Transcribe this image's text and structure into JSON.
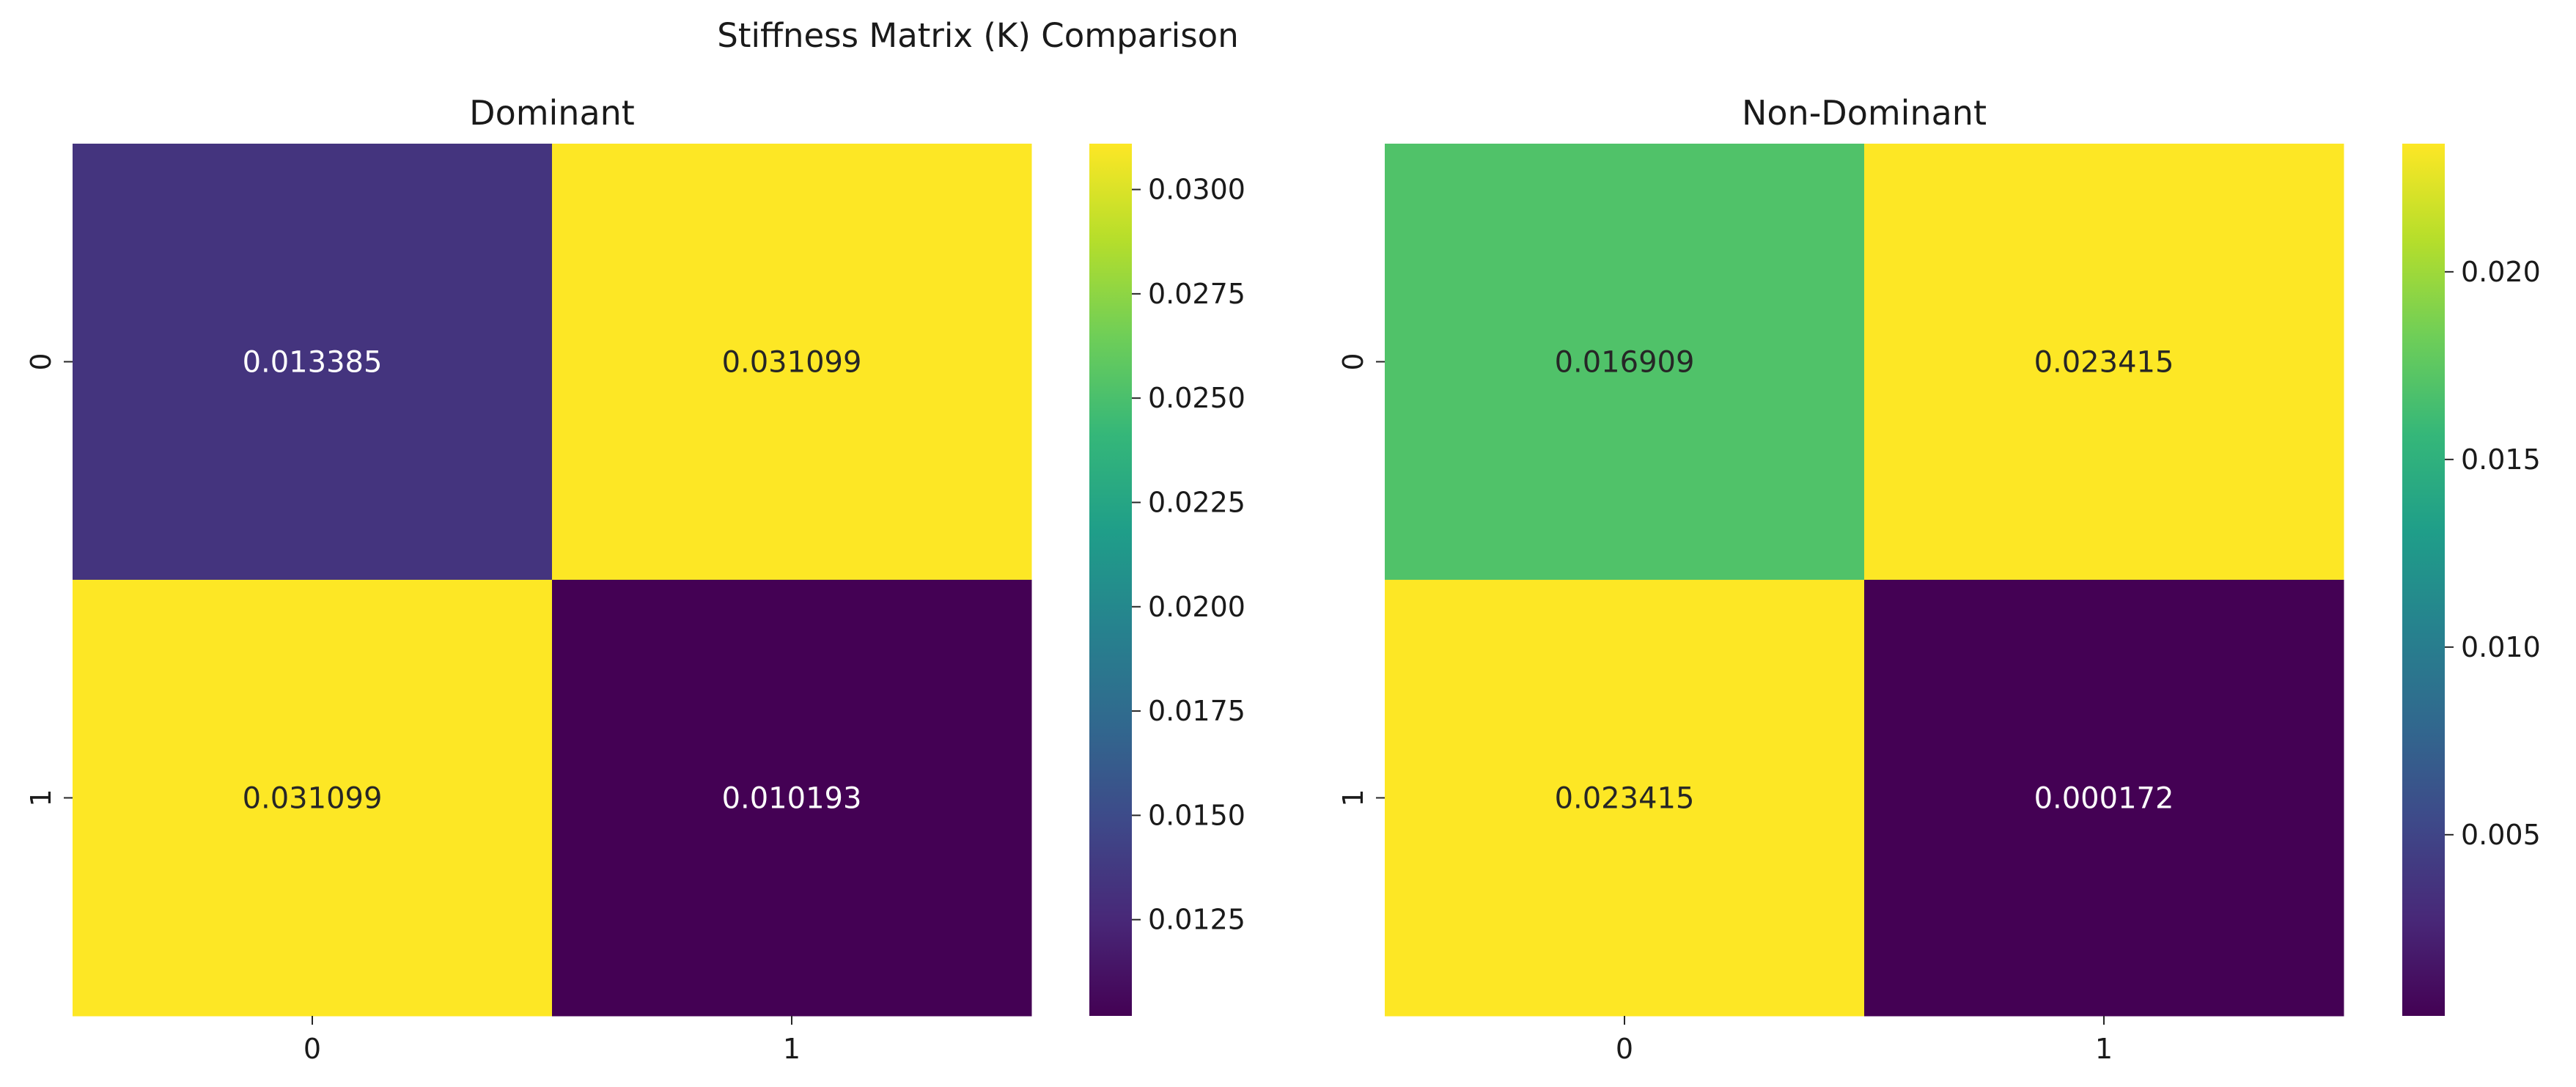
{
  "figure": {
    "suptitle": "Stiffness Matrix (K) Comparison"
  },
  "colormap": "viridis",
  "chart_data": [
    {
      "type": "heatmap",
      "title": "Dominant",
      "x_tick_labels": [
        "0",
        "1"
      ],
      "y_tick_labels": [
        "0",
        "1"
      ],
      "values": [
        [
          0.013385,
          0.031099
        ],
        [
          0.031099,
          0.010193
        ]
      ],
      "cell_labels": [
        [
          "0.013385",
          "0.031099"
        ],
        [
          "0.031099",
          "0.010193"
        ]
      ],
      "vmin": 0.010193,
      "vmax": 0.031099,
      "colorbar_ticks": [
        "0.0125",
        "0.0150",
        "0.0175",
        "0.0200",
        "0.0225",
        "0.0250",
        "0.0275",
        "0.0300"
      ]
    },
    {
      "type": "heatmap",
      "title": "Non-Dominant",
      "x_tick_labels": [
        "0",
        "1"
      ],
      "y_tick_labels": [
        "0",
        "1"
      ],
      "values": [
        [
          0.016909,
          0.023415
        ],
        [
          0.023415,
          0.000172
        ]
      ],
      "cell_labels": [
        [
          "0.016909",
          "0.023415"
        ],
        [
          "0.023415",
          "0.000172"
        ]
      ],
      "vmin": 0.000172,
      "vmax": 0.023415,
      "colorbar_ticks": [
        "0.005",
        "0.010",
        "0.015",
        "0.020"
      ]
    }
  ]
}
